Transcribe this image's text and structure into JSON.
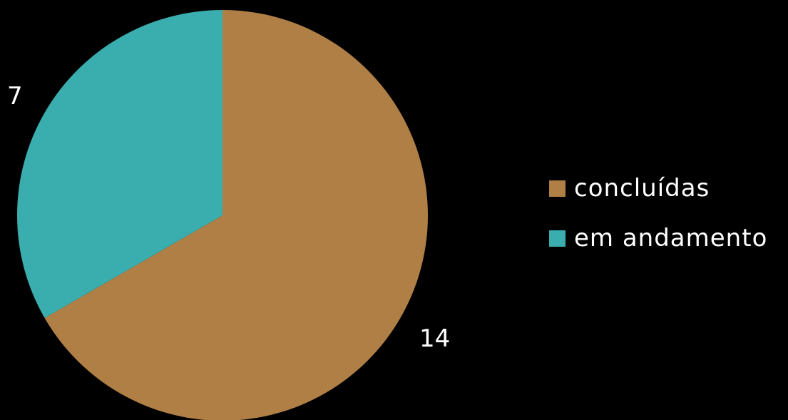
{
  "chart_data": {
    "type": "pie",
    "start_angle_deg": 0,
    "direction": "clockwise",
    "slices": [
      {
        "label": "concluídas",
        "value": 14,
        "color": "#B07F45"
      },
      {
        "label": "em andamento",
        "value": 7,
        "color": "#3AADAF"
      }
    ],
    "data_labels": [
      "14",
      "7"
    ],
    "legend": {
      "placement": "right",
      "entries": [
        "concluídas",
        "em andamento"
      ]
    }
  }
}
